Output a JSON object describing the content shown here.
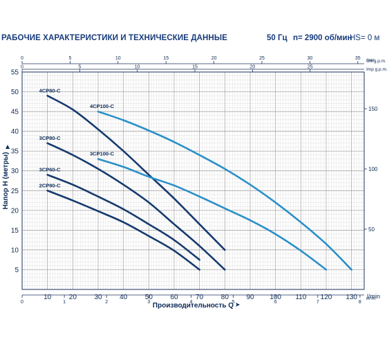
{
  "header": {
    "title": "РАБОЧИЕ ХАРАКТЕРИСТИКИ И ТЕХНИЧЕСКИЕ ДАННЫЕ",
    "frequency": "50 Гц",
    "speed": "n= 2900 об/мин",
    "suction": "HS= 0 м"
  },
  "chart_data": {
    "type": "line",
    "title": "",
    "xlabel": "Производительность Q",
    "ylabel": "Напор Н (метры)",
    "xlim": [
      0,
      135
    ],
    "ylim": [
      0,
      55
    ],
    "x_unit": "l/min",
    "y2_unit": "feet",
    "top_axis_us": {
      "unit": "US g.p.m.",
      "ticks": [
        0,
        5,
        10,
        15,
        20,
        25,
        30,
        35
      ]
    },
    "top_axis_imp": {
      "unit": "Imp g.p.m.",
      "ticks": [
        0,
        5,
        10,
        15,
        20,
        25
      ]
    },
    "bottom_axis_m3h": {
      "unit": "m³/h",
      "ticks": [
        0,
        1,
        2,
        3,
        4,
        5,
        6,
        7,
        8
      ]
    },
    "x_ticks": [
      10,
      20,
      30,
      40,
      50,
      60,
      70,
      80,
      90,
      100,
      110,
      120,
      130
    ],
    "y_ticks": [
      5,
      10,
      15,
      20,
      25,
      30,
      35,
      40,
      45,
      50,
      55
    ],
    "y2_ticks": [
      50,
      100,
      150
    ],
    "grid": true,
    "series": [
      {
        "name": "4CP80-C",
        "color": "#153a6e",
        "x": [
          10,
          20,
          30,
          40,
          50,
          60,
          70,
          80
        ],
        "y": [
          49,
          45.5,
          40.5,
          35,
          29,
          23,
          16.5,
          10
        ]
      },
      {
        "name": "3CP80-C",
        "color": "#153a6e",
        "x": [
          10,
          20,
          30,
          40,
          50,
          60,
          70,
          80
        ],
        "y": [
          37,
          34,
          30.5,
          26.5,
          22,
          16.5,
          11,
          5
        ]
      },
      {
        "name": "3CP60-C",
        "color": "#153a6e",
        "x": [
          10,
          20,
          30,
          40,
          50,
          60,
          70
        ],
        "y": [
          29,
          26.5,
          23.5,
          20.3,
          16.5,
          12.5,
          7.5
        ]
      },
      {
        "name": "2CP80-C",
        "color": "#153a6e",
        "x": [
          10,
          20,
          30,
          40,
          50,
          60,
          70
        ],
        "y": [
          25,
          22.5,
          19.8,
          17,
          13.5,
          9.8,
          5
        ]
      },
      {
        "name": "4CP100-C",
        "color": "#2a90c8",
        "x": [
          30,
          40,
          50,
          60,
          70,
          80,
          90,
          100,
          110,
          120,
          130
        ],
        "y": [
          45,
          42.8,
          40.2,
          37.3,
          34,
          30.5,
          26.5,
          22,
          17,
          11.5,
          5
        ]
      },
      {
        "name": "3CP100-C",
        "color": "#2a90c8",
        "x": [
          30,
          40,
          50,
          60,
          70,
          80,
          90,
          100,
          110,
          120
        ],
        "y": [
          33,
          31,
          28.5,
          26.3,
          23.5,
          20.5,
          17.5,
          14,
          9.8,
          5
        ]
      }
    ]
  }
}
